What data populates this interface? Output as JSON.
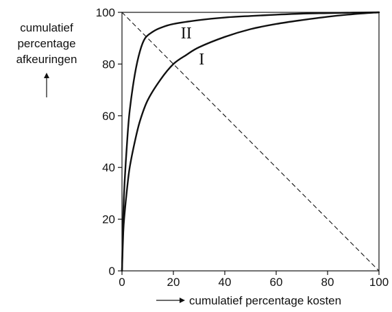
{
  "chart_data": {
    "type": "line",
    "title": "",
    "xlabel": "cumulatief percentage kosten",
    "ylabel": [
      "cumulatief",
      "percentage",
      "afkeuringen"
    ],
    "xlim": [
      0,
      100
    ],
    "ylim": [
      0,
      100
    ],
    "x_ticks": [
      0,
      20,
      40,
      60,
      80,
      100
    ],
    "y_ticks": [
      0,
      20,
      40,
      60,
      80,
      100
    ],
    "grid": false,
    "series": [
      {
        "name": "I",
        "style": "solid",
        "x": [
          0,
          0.5,
          1,
          2,
          3,
          5,
          7,
          10,
          15,
          20,
          25,
          30,
          40,
          50,
          60,
          70,
          80,
          90,
          100
        ],
        "y": [
          0,
          15,
          22,
          32,
          40,
          50,
          58,
          66,
          74,
          80,
          83.5,
          86.5,
          90.5,
          93.5,
          95.5,
          97,
          98.3,
          99.3,
          100
        ]
      },
      {
        "name": "II",
        "style": "solid",
        "x": [
          0,
          0.5,
          1,
          2,
          3,
          5,
          7,
          9,
          12,
          15,
          20,
          30,
          40,
          50,
          60,
          70,
          80,
          90,
          100
        ],
        "y": [
          0,
          22,
          34,
          50,
          62,
          76,
          85,
          90,
          92.5,
          94,
          95.5,
          97,
          98,
          98.6,
          99.1,
          99.5,
          99.7,
          99.9,
          100
        ]
      },
      {
        "style": "dashed",
        "x": [
          0,
          100
        ],
        "y": [
          100,
          0
        ]
      }
    ],
    "annotations": [
      {
        "text": "II",
        "series": "II",
        "x": 25,
        "y": 92
      },
      {
        "text": "I",
        "series": "I",
        "x": 31,
        "y": 82
      }
    ]
  }
}
